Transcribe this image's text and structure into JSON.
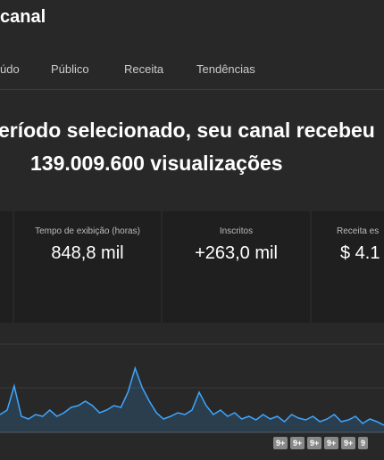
{
  "header": {
    "title": "canal"
  },
  "tabs": [
    "údo",
    "Público",
    "Receita",
    "Tendências"
  ],
  "headline": {
    "line1": "eríodo selecionado, seu canal recebeu",
    "line2": "139.009.600 visualizações"
  },
  "metrics": [
    {
      "label": "Tempo de exibição (horas)",
      "value": "848,8 mil"
    },
    {
      "label": "Inscritos",
      "value": "+263,0 mil"
    },
    {
      "label": "Receita es",
      "value": "$ 4.1"
    }
  ],
  "chart": {
    "color": "#3ea6ff",
    "values": [
      20,
      25,
      52,
      18,
      15,
      20,
      18,
      25,
      18,
      22,
      28,
      30,
      35,
      30,
      22,
      25,
      30,
      28,
      45,
      72,
      50,
      35,
      22,
      15,
      18,
      22,
      20,
      25,
      45,
      30,
      20,
      25,
      18,
      22,
      15,
      18,
      14,
      20,
      15,
      18,
      12,
      20,
      16,
      14,
      18,
      12,
      15,
      20,
      12,
      14,
      18,
      10,
      15,
      12,
      8
    ]
  },
  "badges": [
    "9+",
    "9+",
    "9+",
    "9+",
    "9+",
    "9"
  ]
}
